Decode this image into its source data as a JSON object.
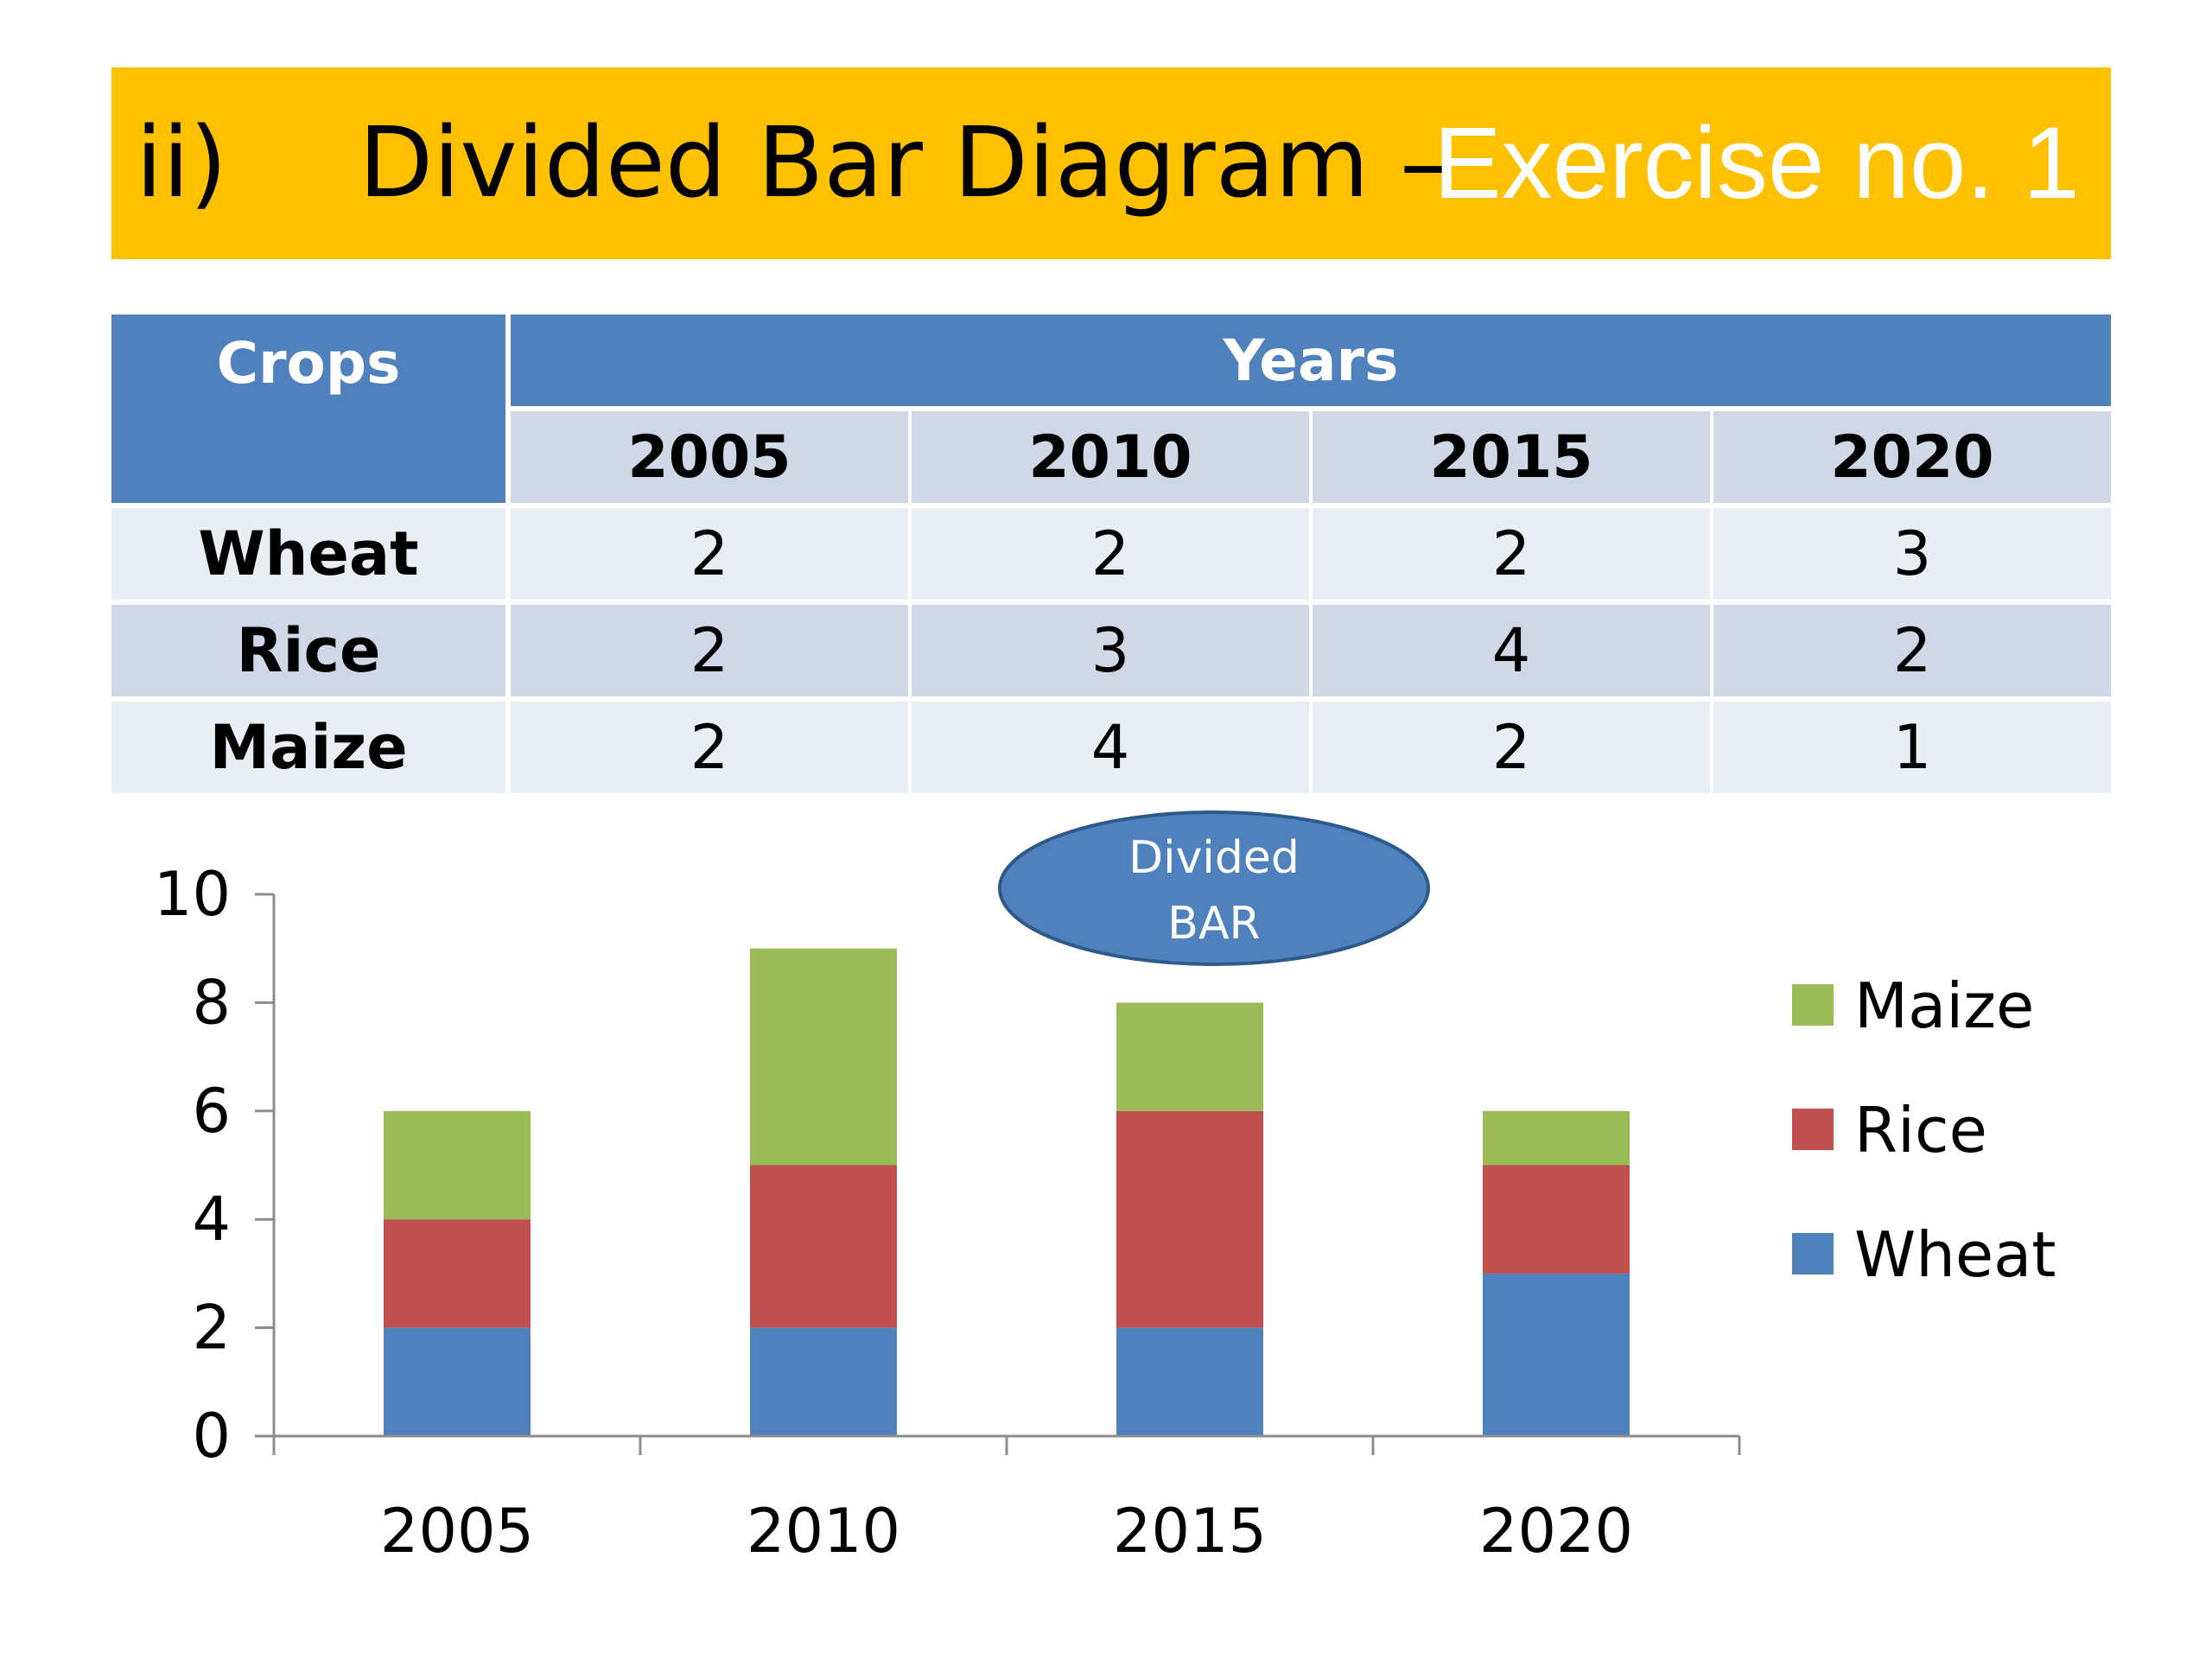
{
  "header": {
    "number": "ii)",
    "title": "Divided Bar Diagram –",
    "accent": "Exercise no. 1",
    "background": "#FFC000"
  },
  "table": {
    "crops_header": "Crops",
    "years_header": "Years",
    "years": [
      "2005",
      "2010",
      "2015",
      "2020"
    ],
    "rows": [
      {
        "crop": "Wheat",
        "values": [
          "2",
          "2",
          "2",
          "3"
        ]
      },
      {
        "crop": "Rice",
        "values": [
          "2",
          "3",
          "4",
          "2"
        ]
      },
      {
        "crop": "Maize",
        "values": [
          "2",
          "4",
          "2",
          "1"
        ]
      }
    ],
    "colors": {
      "header": "#4F81BD",
      "row_light": "#E9EDF4",
      "row_dark": "#D0D8E8"
    }
  },
  "callout": {
    "line1": "Divided",
    "line2": "BAR",
    "color": "#4F81BD"
  },
  "chart_data": {
    "type": "bar",
    "stacked": true,
    "categories": [
      "2005",
      "2010",
      "2015",
      "2020"
    ],
    "series": [
      {
        "name": "Wheat",
        "values": [
          2,
          2,
          2,
          3
        ],
        "color": "#4F81BD"
      },
      {
        "name": "Rice",
        "values": [
          2,
          3,
          4,
          2
        ],
        "color": "#C0504D"
      },
      {
        "name": "Maize",
        "values": [
          2,
          4,
          2,
          1
        ],
        "color": "#9BBB59"
      }
    ],
    "ylim": [
      0,
      10
    ],
    "yticks": [
      0,
      2,
      4,
      6,
      8,
      10
    ],
    "grid": false,
    "legend_position": "right"
  }
}
